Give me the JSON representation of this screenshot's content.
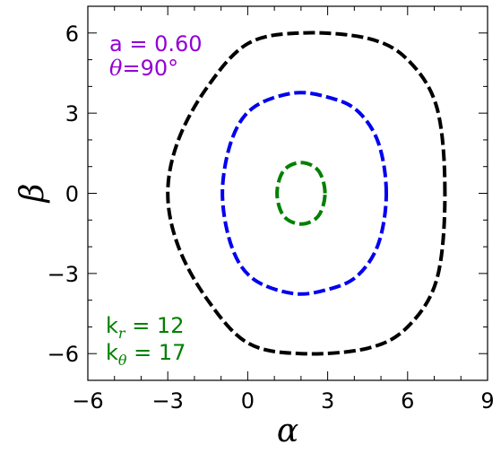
{
  "chart_data": {
    "type": "line",
    "xlabel": "α",
    "ylabel": "β",
    "xlim": [
      -6,
      9
    ],
    "ylim": [
      -7,
      7
    ],
    "x_ticks": [
      -6,
      -3,
      0,
      3,
      6,
      9
    ],
    "y_ticks": [
      -6,
      -3,
      0,
      3,
      6
    ],
    "x_tick_labels": [
      "−6",
      "−3",
      "0",
      "3",
      "6",
      "9"
    ],
    "y_tick_labels": [
      "−6",
      "−3",
      "0",
      "3",
      "6"
    ],
    "grid": false,
    "series": [
      {
        "color": "#000000",
        "style": "dashed",
        "x": [
          7.4,
          7.1,
          6.0,
          4.5,
          2.0,
          0.0,
          -1.5,
          -2.6,
          -3.0,
          -2.6,
          -1.5,
          0.0,
          2.0,
          4.5,
          6.0,
          7.1,
          7.4
        ],
        "y": [
          0.0,
          3.2,
          5.0,
          5.8,
          6.0,
          5.6,
          4.0,
          2.0,
          0.0,
          -2.0,
          -4.0,
          -5.6,
          -6.0,
          -5.8,
          -5.0,
          -3.2,
          0.0
        ]
      },
      {
        "color": "#0000ee",
        "style": "dashed",
        "x": [
          5.2,
          4.9,
          4.1,
          3.0,
          1.7,
          0.2,
          -0.6,
          -0.95,
          -0.6,
          0.2,
          1.7,
          3.0,
          4.1,
          4.9,
          5.2
        ],
        "y": [
          0.0,
          1.9,
          3.1,
          3.6,
          3.75,
          3.2,
          2.0,
          0.0,
          -2.0,
          -3.2,
          -3.75,
          -3.6,
          -3.1,
          -1.9,
          0.0
        ]
      },
      {
        "color": "#008000",
        "style": "dashed",
        "x": [
          2.9,
          2.65,
          2.0,
          1.35,
          1.1,
          1.35,
          2.0,
          2.65,
          2.9
        ],
        "y": [
          0.0,
          0.85,
          1.15,
          0.85,
          0.0,
          -0.85,
          -1.15,
          -0.85,
          0.0
        ]
      }
    ],
    "annotations": {
      "top_left": {
        "color": "#9400d3",
        "line1": "a = 0.60",
        "line2_symbol": "θ",
        "line2_value": "=90°"
      },
      "bottom_left": {
        "color": "#008000",
        "line1_k": "k",
        "line1_sub": "r",
        "line1_value": " = 12",
        "line2_k": "k",
        "line2_sub": "θ",
        "line2_value": " = 17"
      }
    }
  }
}
